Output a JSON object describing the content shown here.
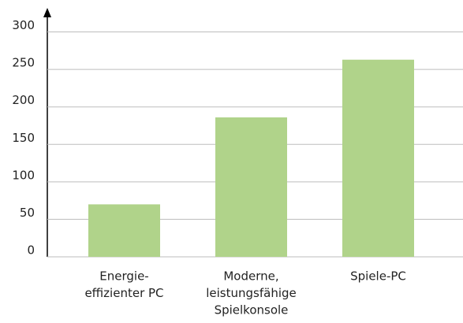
{
  "chart_data": {
    "type": "bar",
    "categories": [
      [
        "Energie-",
        "effizienter PC"
      ],
      [
        "Moderne,",
        "leistungsfähige",
        "Spielkonsole"
      ],
      [
        "Spiele-PC"
      ]
    ],
    "values": [
      70,
      186,
      263
    ],
    "color": "#b0d38a",
    "ylim": [
      0,
      330
    ],
    "yticks": [
      0,
      50,
      100,
      150,
      200,
      250,
      300
    ],
    "grid": true
  }
}
